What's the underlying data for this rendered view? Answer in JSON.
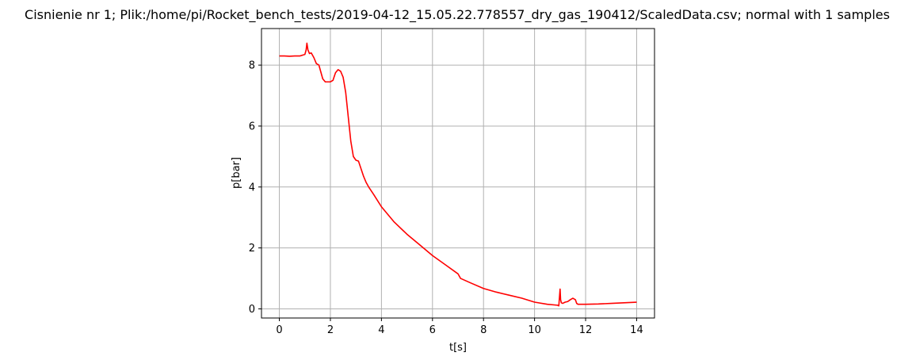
{
  "chart_data": {
    "type": "line",
    "title": "Cisnienie nr 1; Plik:/home/pi/Rocket_bench_tests/2019-04-12_15.05.22.778557_dry_gas_190412/ScaledData.csv; normal with 1 samples",
    "xlabel": "t[s]",
    "ylabel": "p[bar]",
    "xlim": [
      -0.7,
      14.7
    ],
    "ylim": [
      -0.3,
      9.2
    ],
    "xticks": [
      0,
      2,
      4,
      6,
      8,
      10,
      12,
      14
    ],
    "yticks": [
      0,
      2,
      4,
      6,
      8
    ],
    "grid": true,
    "line_color": "#ff0000",
    "series": [
      {
        "x": [
          0,
          0.2,
          0.4,
          0.6,
          0.8,
          1.0,
          1.05,
          1.08,
          1.12,
          1.18,
          1.25,
          1.35,
          1.45,
          1.55,
          1.6,
          1.7,
          1.8,
          1.9,
          2.0,
          2.1,
          2.2,
          2.3,
          2.4,
          2.5,
          2.6,
          2.7,
          2.8,
          2.9,
          3.0,
          3.1,
          3.2,
          3.3,
          3.4,
          3.5,
          3.7,
          4.0,
          4.5,
          5.0,
          5.5,
          6.0,
          6.5,
          7.0,
          7.1,
          7.5,
          8.0,
          8.5,
          9.0,
          9.5,
          10.0,
          10.5,
          10.9,
          10.95,
          11.0,
          11.02,
          11.05,
          11.1,
          11.2,
          11.3,
          11.4,
          11.5,
          11.6,
          11.65,
          11.7,
          12.0,
          12.5,
          13.0,
          13.5,
          14.0
        ],
        "y": [
          8.3,
          8.3,
          8.29,
          8.3,
          8.3,
          8.35,
          8.5,
          8.72,
          8.5,
          8.38,
          8.4,
          8.25,
          8.05,
          8.0,
          7.85,
          7.55,
          7.45,
          7.45,
          7.45,
          7.5,
          7.75,
          7.85,
          7.8,
          7.6,
          7.1,
          6.3,
          5.5,
          5.0,
          4.88,
          4.85,
          4.6,
          4.35,
          4.15,
          4.0,
          3.75,
          3.35,
          2.85,
          2.45,
          2.1,
          1.75,
          1.45,
          1.15,
          1.0,
          0.85,
          0.67,
          0.55,
          0.45,
          0.35,
          0.22,
          0.15,
          0.12,
          0.1,
          0.65,
          0.3,
          0.2,
          0.18,
          0.22,
          0.24,
          0.3,
          0.35,
          0.3,
          0.18,
          0.15,
          0.15,
          0.16,
          0.18,
          0.2,
          0.22
        ]
      }
    ]
  }
}
